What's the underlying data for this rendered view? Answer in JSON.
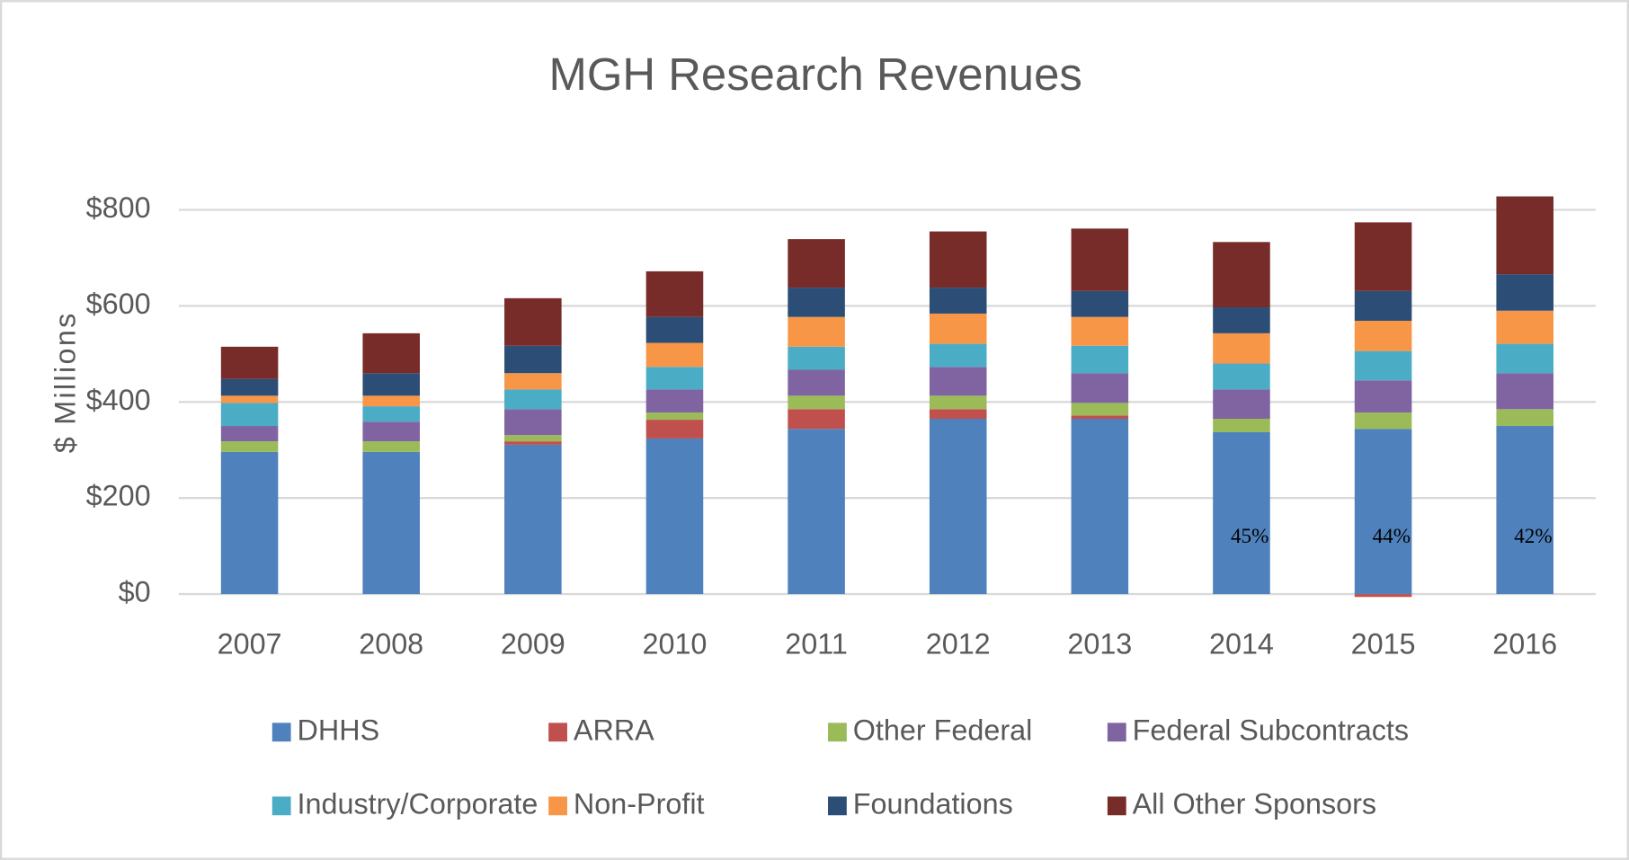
{
  "chart_data": {
    "type": "stacked_bar",
    "title": "MGH Research Revenues",
    "y_label": "$ Millions",
    "categories": [
      "2007",
      "2008",
      "2009",
      "2010",
      "2011",
      "2012",
      "2013",
      "2014",
      "2015",
      "2016"
    ],
    "series": [
      {
        "name": "DHHS",
        "color": "#4f81bd",
        "values": [
          296,
          296,
          311,
          324,
          344,
          365,
          365,
          337,
          344,
          350
        ]
      },
      {
        "name": "ARRA",
        "color": "#c0504d",
        "values": [
          0,
          0,
          7,
          39,
          41,
          20,
          7,
          0,
          -6,
          0
        ]
      },
      {
        "name": "Other Federal",
        "color": "#9bbb59",
        "values": [
          22,
          22,
          13,
          15,
          28,
          28,
          26,
          28,
          34,
          35
        ]
      },
      {
        "name": "Federal Subcontracts",
        "color": "#8064a2",
        "values": [
          32,
          41,
          54,
          48,
          54,
          60,
          62,
          61,
          67,
          75
        ]
      },
      {
        "name": "Industry/Corporate",
        "color": "#4bacc6",
        "values": [
          48,
          32,
          41,
          47,
          48,
          48,
          57,
          54,
          61,
          61
        ]
      },
      {
        "name": "Non-Profit",
        "color": "#f79646",
        "values": [
          15,
          22,
          34,
          50,
          62,
          63,
          60,
          63,
          63,
          69
        ]
      },
      {
        "name": "Foundations",
        "color": "#2c4d75",
        "values": [
          35,
          47,
          57,
          54,
          61,
          54,
          54,
          54,
          62,
          76
        ]
      },
      {
        "name": "All Other Sponsors",
        "color": "#772c2a",
        "values": [
          67,
          83,
          99,
          95,
          101,
          117,
          130,
          136,
          143,
          162
        ]
      }
    ],
    "ylim": [
      0,
      800
    ],
    "yticks": [
      {
        "value": 0,
        "label": "$0"
      },
      {
        "value": 200,
        "label": "$200"
      },
      {
        "value": 400,
        "label": "$400"
      },
      {
        "value": 600,
        "label": "$600"
      },
      {
        "value": 800,
        "label": "$800"
      }
    ],
    "grid": true,
    "legend": "bottom",
    "annotations": [
      {
        "category": "2014",
        "text": "45%"
      },
      {
        "category": "2015",
        "text": "44%"
      },
      {
        "category": "2016",
        "text": "42%"
      }
    ]
  }
}
